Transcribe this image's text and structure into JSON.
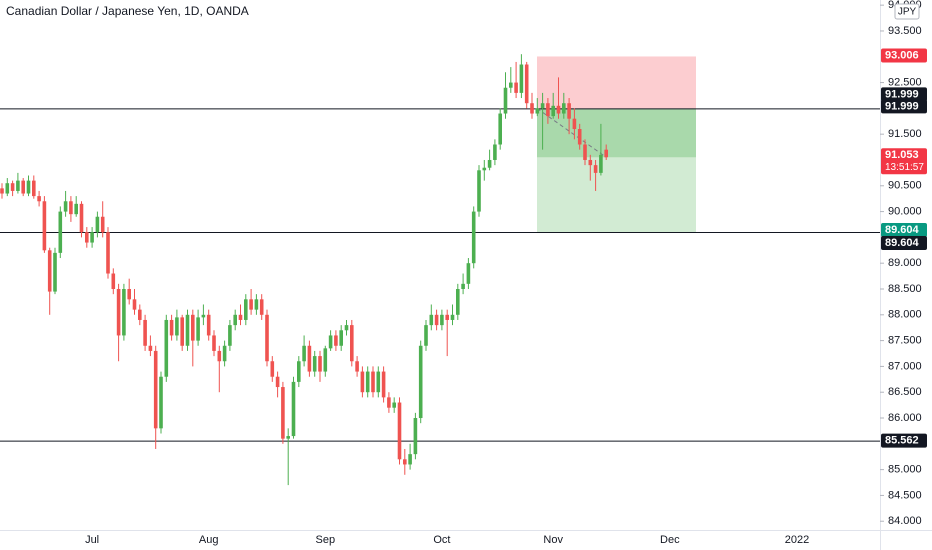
{
  "chart_data": {
    "type": "candlestick",
    "title": "Canadian Dollar / Japanese Yen, 1D, OANDA",
    "currency": "JPY",
    "categories": [
      null,
      null,
      null,
      null,
      null,
      null,
      null,
      null,
      null,
      null,
      null,
      null,
      null,
      null,
      null,
      null,
      null,
      "Jul",
      null,
      null,
      null,
      null,
      null,
      null,
      null,
      null,
      null,
      null,
      null,
      null,
      null,
      null,
      null,
      null,
      null,
      null,
      null,
      null,
      null,
      "Aug",
      null,
      null,
      null,
      null,
      null,
      null,
      null,
      null,
      null,
      null,
      null,
      null,
      null,
      null,
      null,
      null,
      null,
      null,
      null,
      null,
      null,
      "Sep",
      null,
      null,
      null,
      null,
      null,
      null,
      null,
      null,
      null,
      null,
      null,
      null,
      null,
      null,
      null,
      null,
      null,
      null,
      null,
      null,
      null,
      "Oct",
      null,
      null,
      null,
      null,
      null,
      null,
      null,
      null,
      null,
      null,
      null,
      null,
      null,
      null,
      null,
      null,
      null,
      null,
      null,
      null,
      "Nov",
      null,
      null,
      null,
      null,
      null,
      null,
      null,
      null,
      null,
      null,
      null,
      null,
      null,
      null,
      null,
      null,
      null,
      null,
      null,
      null,
      null,
      "Dec",
      null,
      null,
      null,
      null,
      null,
      null,
      null,
      null,
      null,
      null,
      null,
      null,
      null,
      null,
      null,
      null,
      null,
      null,
      null,
      null,
      null,
      null,
      null,
      "2022"
    ],
    "open": [
      90.45,
      90.35,
      90.55,
      90.4,
      90.6,
      90.35,
      90.6,
      90.3,
      90.2,
      89.25,
      88.45,
      89.2,
      90.0,
      90.2,
      89.95,
      90.15,
      89.6,
      89.4,
      89.6,
      89.9,
      89.6,
      88.8,
      88.5,
      87.6,
      88.5,
      88.3,
      88.1,
      87.9,
      87.4,
      87.3,
      85.8,
      86.8,
      87.9,
      87.6,
      87.95,
      87.4,
      88.0,
      87.5,
      87.95,
      88.0,
      87.6,
      87.3,
      87.1,
      87.4,
      87.8,
      88.0,
      87.9,
      88.3,
      88.1,
      88.3,
      88.0,
      87.1,
      86.8,
      86.6,
      85.6,
      85.65,
      86.7,
      87.1,
      87.4,
      86.9,
      87.2,
      86.9,
      87.35,
      87.6,
      87.4,
      87.7,
      87.8,
      87.1,
      86.9,
      86.5,
      86.9,
      86.5,
      86.9,
      86.4,
      86.2,
      86.3,
      85.2,
      85.1,
      85.3,
      86.0,
      87.4,
      87.8,
      88.0,
      87.8,
      88.0,
      87.9,
      88.0,
      88.5,
      88.6,
      89.0,
      90.0,
      90.8,
      90.85,
      91.0,
      91.3,
      91.9,
      92.4,
      92.5,
      92.3,
      92.85,
      92.1,
      91.9,
      92.0,
      92.1,
      91.85,
      92.05,
      91.9,
      92.1,
      91.8,
      91.6,
      91.3,
      91.0,
      90.9,
      90.75,
      91.2,
      null,
      null,
      null,
      null,
      null,
      null,
      null,
      null,
      null,
      null,
      null,
      null,
      null,
      null,
      null,
      null,
      null,
      null,
      null,
      null,
      null,
      null,
      null,
      null,
      null,
      null,
      null,
      null,
      null,
      null,
      null,
      null,
      null,
      null,
      null,
      null
    ],
    "high": [
      90.55,
      90.65,
      90.6,
      90.75,
      90.65,
      90.7,
      90.7,
      90.4,
      90.3,
      89.3,
      89.3,
      90.1,
      90.4,
      90.3,
      90.3,
      90.2,
      89.7,
      89.7,
      90.0,
      90.2,
      89.7,
      88.9,
      88.6,
      88.6,
      88.7,
      88.5,
      88.2,
      88.0,
      87.6,
      87.4,
      86.9,
      88.0,
      88.0,
      88.1,
      88.0,
      88.1,
      88.1,
      88.1,
      88.2,
      88.1,
      87.7,
      87.4,
      87.5,
      87.9,
      88.1,
      88.2,
      88.4,
      88.5,
      88.4,
      88.4,
      88.1,
      87.2,
      86.9,
      86.7,
      85.8,
      86.8,
      87.2,
      87.6,
      87.5,
      87.3,
      87.3,
      87.4,
      87.7,
      87.7,
      87.8,
      87.9,
      87.9,
      87.2,
      87.0,
      87.0,
      87.0,
      87.0,
      87.0,
      86.5,
      86.4,
      86.4,
      85.4,
      85.5,
      86.1,
      87.5,
      87.9,
      88.2,
      88.1,
      88.1,
      88.1,
      88.2,
      88.6,
      88.8,
      89.1,
      90.1,
      90.9,
      91.0,
      91.2,
      91.4,
      92.0,
      92.7,
      92.8,
      92.9,
      93.05,
      92.9,
      92.3,
      92.2,
      92.3,
      92.2,
      92.3,
      92.6,
      92.3,
      92.2,
      92.0,
      91.7,
      91.4,
      91.1,
      91.0,
      91.7,
      91.3,
      null,
      null,
      null,
      null,
      null,
      null,
      null,
      null,
      null,
      null,
      null,
      null,
      null,
      null,
      null,
      null,
      null,
      null,
      null,
      null,
      null,
      null,
      null,
      null,
      null,
      null,
      null,
      null,
      null,
      null,
      null,
      null,
      null,
      null,
      null,
      null
    ],
    "low": [
      90.25,
      90.3,
      90.3,
      90.35,
      90.3,
      90.3,
      90.25,
      90.1,
      89.2,
      88.0,
      88.4,
      89.1,
      89.9,
      89.8,
      89.9,
      89.5,
      89.3,
      89.3,
      89.5,
      89.5,
      88.7,
      88.4,
      87.1,
      87.5,
      88.2,
      88.0,
      87.8,
      87.3,
      87.2,
      85.4,
      85.7,
      86.7,
      87.5,
      87.5,
      87.3,
      87.3,
      87.0,
      87.4,
      87.8,
      87.5,
      87.2,
      86.5,
      87.0,
      87.3,
      87.7,
      87.8,
      87.8,
      88.0,
      88.0,
      87.9,
      87.0,
      86.7,
      86.4,
      85.5,
      84.7,
      85.6,
      86.6,
      87.0,
      86.8,
      86.8,
      86.7,
      86.8,
      87.3,
      87.3,
      87.3,
      87.6,
      87.0,
      86.8,
      86.4,
      86.4,
      86.4,
      86.4,
      86.3,
      86.1,
      86.1,
      85.1,
      84.9,
      85.0,
      85.2,
      85.9,
      87.3,
      87.7,
      87.7,
      87.7,
      87.2,
      87.8,
      87.9,
      88.4,
      88.5,
      88.9,
      89.9,
      90.6,
      90.8,
      90.9,
      91.2,
      91.8,
      92.3,
      92.2,
      92.2,
      92.0,
      91.8,
      91.85,
      91.2,
      91.7,
      91.8,
      91.8,
      91.8,
      91.5,
      91.4,
      91.2,
      90.9,
      90.6,
      90.4,
      90.7,
      91.0,
      null,
      null,
      null,
      null,
      null,
      null,
      null,
      null,
      null,
      null,
      null,
      null,
      null,
      null,
      null,
      null,
      null,
      null,
      null,
      null,
      null,
      null,
      null,
      null,
      null,
      null,
      null,
      null,
      null,
      null,
      null,
      null,
      null,
      null,
      null,
      null
    ],
    "close": [
      90.35,
      90.55,
      90.4,
      90.6,
      90.35,
      90.6,
      90.3,
      90.2,
      89.25,
      88.45,
      89.2,
      90.0,
      90.2,
      89.95,
      90.15,
      89.6,
      89.4,
      89.6,
      89.9,
      89.6,
      88.8,
      88.5,
      87.6,
      88.5,
      88.3,
      88.1,
      87.9,
      87.4,
      87.3,
      85.8,
      86.8,
      87.9,
      87.6,
      87.95,
      87.4,
      88.0,
      87.5,
      87.95,
      88.0,
      87.6,
      87.3,
      87.1,
      87.4,
      87.8,
      88.0,
      87.9,
      88.3,
      88.1,
      88.3,
      88.0,
      87.1,
      86.8,
      86.6,
      85.6,
      85.65,
      86.7,
      87.1,
      87.4,
      86.9,
      87.2,
      86.9,
      87.35,
      87.6,
      87.4,
      87.7,
      87.8,
      87.1,
      86.9,
      86.5,
      86.9,
      86.5,
      86.9,
      86.4,
      86.2,
      86.3,
      85.2,
      85.1,
      85.3,
      86.0,
      87.4,
      87.8,
      88.0,
      87.8,
      88.0,
      87.9,
      88.0,
      88.5,
      88.6,
      89.0,
      90.0,
      90.8,
      90.85,
      91.0,
      91.3,
      91.9,
      92.4,
      92.5,
      92.3,
      92.85,
      92.1,
      91.9,
      92.0,
      92.1,
      91.85,
      92.05,
      91.9,
      92.1,
      91.8,
      91.6,
      91.3,
      91.0,
      90.9,
      90.75,
      91.1,
      91.053,
      null,
      null,
      null,
      null,
      null,
      null,
      null,
      null,
      null,
      null,
      null,
      null,
      null,
      null,
      null,
      null,
      null,
      null,
      null,
      null,
      null,
      null,
      null,
      null,
      null,
      null,
      null,
      null,
      null,
      null,
      null,
      null,
      null,
      null,
      null,
      null
    ],
    "up_color": "#4caf50",
    "down_color": "#ef5350",
    "ylim": [
      83.83,
      94.1
    ],
    "yticks": [
      {
        "value": 84,
        "label": "84.000"
      },
      {
        "value": 84.5,
        "label": "84.500"
      },
      {
        "value": 85,
        "label": "85.000"
      },
      {
        "value": 86,
        "label": "86.000"
      },
      {
        "value": 86.5,
        "label": "86.500"
      },
      {
        "value": 87,
        "label": "87.000"
      },
      {
        "value": 87.5,
        "label": "87.500"
      },
      {
        "value": 88,
        "label": "88.000"
      },
      {
        "value": 88.5,
        "label": "88.500"
      },
      {
        "value": 89,
        "label": "89.000"
      },
      {
        "value": 90,
        "label": "90.000"
      },
      {
        "value": 90.5,
        "label": "90.500"
      },
      {
        "value": 91.5,
        "label": "91.500"
      },
      {
        "value": 92.5,
        "label": "92.500"
      },
      {
        "value": 93.5,
        "label": "93.500"
      },
      {
        "value": 94,
        "label": "94.000"
      }
    ],
    "horizontal_lines": [
      91.999,
      89.604,
      85.562
    ],
    "position": {
      "stop_loss": 93.006,
      "entry": 91.999,
      "take_profit": 89.604
    },
    "last_price": 91.053,
    "countdown": "13:51:57"
  }
}
